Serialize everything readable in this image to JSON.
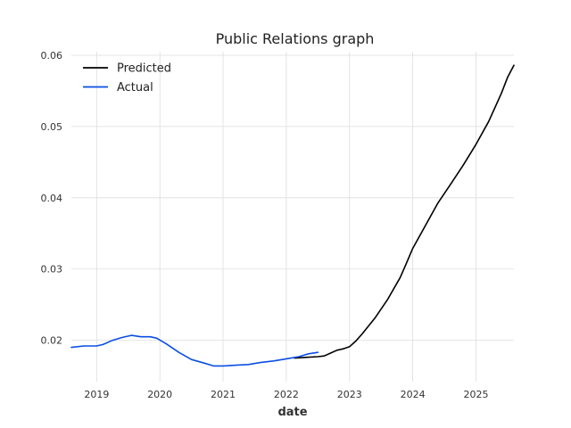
{
  "chart_data": {
    "type": "line",
    "title": "Public Relations graph",
    "xlabel": "date",
    "ylabel": "",
    "xlim": [
      2018.6,
      2025.6
    ],
    "ylim": [
      0.0142,
      0.0605
    ],
    "x_ticks": [
      2019,
      2020,
      2021,
      2022,
      2023,
      2024,
      2025
    ],
    "x_tick_labels": [
      "2019",
      "2020",
      "2021",
      "2022",
      "2023",
      "2024",
      "2025"
    ],
    "y_ticks": [
      0.02,
      0.03,
      0.04,
      0.05,
      0.06
    ],
    "y_tick_labels": [
      "0.02",
      "0.03",
      "0.04",
      "0.05",
      "0.06"
    ],
    "grid": true,
    "legend_position": "top-left",
    "series": [
      {
        "name": "Predicted",
        "color": "#000000",
        "x": [
          2022.13,
          2022.3,
          2022.5,
          2022.6,
          2022.7,
          2022.8,
          2022.9,
          2023.0,
          2023.1,
          2023.2,
          2023.4,
          2023.6,
          2023.8,
          2023.9,
          2024.0,
          2024.2,
          2024.4,
          2024.6,
          2024.8,
          2025.0,
          2025.2,
          2025.4,
          2025.5,
          2025.6
        ],
        "y": [
          0.0175,
          0.0176,
          0.0177,
          0.0178,
          0.0182,
          0.0186,
          0.0188,
          0.0191,
          0.0199,
          0.0209,
          0.0231,
          0.0257,
          0.0288,
          0.0308,
          0.0329,
          0.0361,
          0.0393,
          0.0419,
          0.0446,
          0.0475,
          0.0507,
          0.0546,
          0.0569,
          0.0586
        ]
      },
      {
        "name": "Actual",
        "color": "#0a4ee4",
        "x": [
          2018.6,
          2018.8,
          2019.0,
          2019.1,
          2019.25,
          2019.4,
          2019.55,
          2019.7,
          2019.85,
          2019.95,
          2020.1,
          2020.3,
          2020.5,
          2020.7,
          2020.85,
          2021.0,
          2021.2,
          2021.4,
          2021.6,
          2021.8,
          2022.0,
          2022.2,
          2022.35,
          2022.5
        ],
        "y": [
          0.019,
          0.0192,
          0.0192,
          0.0194,
          0.02,
          0.0204,
          0.0207,
          0.0205,
          0.0205,
          0.0203,
          0.0195,
          0.0183,
          0.0173,
          0.0168,
          0.0164,
          0.0164,
          0.0165,
          0.0166,
          0.0169,
          0.0171,
          0.0174,
          0.0177,
          0.0181,
          0.0183
        ]
      }
    ]
  }
}
